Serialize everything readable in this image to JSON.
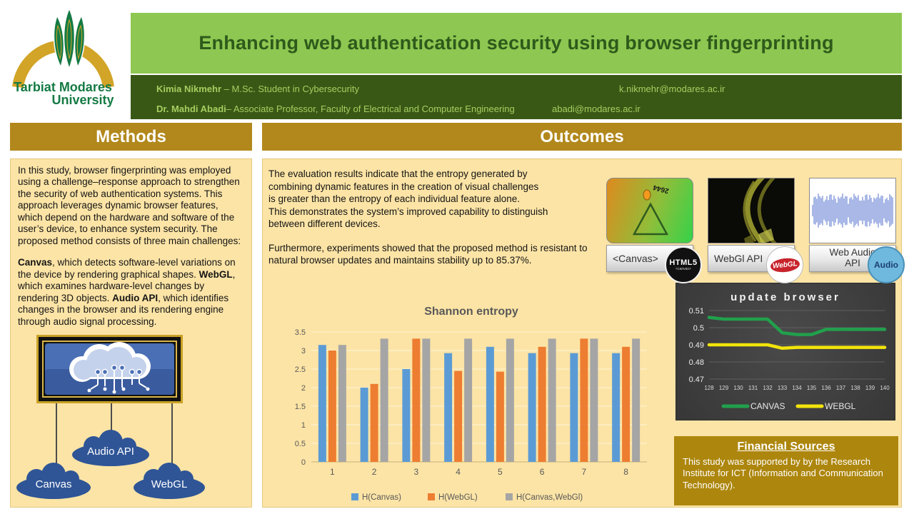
{
  "header": {
    "logo": {
      "line1": "Tarbiat Modares",
      "line2": "University"
    },
    "title": "Enhancing web authentication security using browser fingerprinting",
    "authors": [
      {
        "name": "Kimia Nikmehr ",
        "role": "– M.Sc. Student in Cybersecurity",
        "email": "k.nikmehr@modares.ac.ir"
      },
      {
        "name": "Dr. Mahdi Abadi",
        "role": "– Associate Professor, Faculty of Electrical and Computer Engineering",
        "email": "abadi@modares.ac.ir"
      }
    ]
  },
  "methods": {
    "title": "Methods",
    "p1": "In this study, browser fingerprinting was employed using a challenge–response approach to strengthen the security of web authentication systems. This approach leverages dynamic browser features, which depend on the hardware and software of the user’s device, to enhance system security. The proposed method consists of three main challenges:",
    "p2": {
      "b1": "Canvas",
      "t1": ", which detects software-level variations on the device by rendering graphical shapes. ",
      "b2": "WebGL",
      "t2": ", which examines hardware-level changes by rendering 3D objects. ",
      "b3": "Audio API",
      "t3": ", which identifies changes in the browser and its rendering engine through audio signal processing."
    },
    "diagram": {
      "nodes": [
        "Canvas",
        "Audio API",
        "WebGL"
      ]
    }
  },
  "outcomes": {
    "title": "Outcomes",
    "p1": "The evaluation results indicate that the entropy generated by\ncombining dynamic features in the creation of visual challenges\n is greater than the entropy of each individual feature alone.\n This demonstrates the  system’s improved capability to distinguish\nbetween different devices.",
    "p2": "Furthermore, experiments showed that the proposed method is resistant to natural browser updates and maintains stability up to 85.37%.",
    "cards": [
      {
        "label": "<Canvas>",
        "overlay_text": "2644",
        "badge_top": "HTML5",
        "badge_sub": "<canvas>"
      },
      {
        "label": "WebGl API",
        "badge_top": "WebGL"
      },
      {
        "label": "Web Audio\nAPI",
        "badge_top": "Audio"
      }
    ]
  },
  "financial": {
    "title": "Financial Sources",
    "text": "This study was supported by by the Research Institute for ICT (Information and Communication Technology)."
  },
  "colors": {
    "light_green": "#8EC751",
    "dark_green": "#3A5815",
    "gold_header": "#B2881C",
    "panel_yellow": "#FCE4A6",
    "financial_gold": "#AD860D",
    "cloud_blue": "#2F5597"
  },
  "chart_data": [
    {
      "type": "bar",
      "title": "Shannon entropy",
      "categories": [
        "1",
        "2",
        "3",
        "4",
        "5",
        "6",
        "7",
        "8"
      ],
      "series": [
        {
          "name": "H(Canvas)",
          "color": "#5B9BD5",
          "values": [
            3.15,
            2.0,
            2.5,
            2.93,
            3.1,
            2.93,
            2.93,
            2.93
          ]
        },
        {
          "name": "H(WebGL)",
          "color": "#ED7D31",
          "values": [
            3.0,
            2.1,
            3.32,
            2.45,
            2.43,
            3.1,
            3.32,
            3.1
          ]
        },
        {
          "name": "H(Canvas,WebGl)",
          "color": "#A5A5A5",
          "values": [
            3.15,
            3.32,
            3.32,
            3.32,
            3.32,
            3.32,
            3.32,
            3.32
          ]
        }
      ],
      "xlabel": "",
      "ylabel": "",
      "ylim": [
        0,
        3.5
      ],
      "yticks": [
        0,
        0.5,
        1,
        1.5,
        2,
        2.5,
        3,
        3.5
      ],
      "grid": true,
      "legend_position": "bottom"
    },
    {
      "type": "line",
      "title": "update browser",
      "x": [
        128,
        129,
        130,
        131,
        132,
        133,
        134,
        135,
        136,
        137,
        138,
        139,
        140
      ],
      "series": [
        {
          "name": "CANVAS",
          "color": "#21A04C",
          "values": [
            0.506,
            0.505,
            0.505,
            0.505,
            0.505,
            0.497,
            0.496,
            0.496,
            0.499,
            0.499,
            0.499,
            0.499,
            0.499
          ]
        },
        {
          "name": "WEBGL",
          "color": "#F2E40A",
          "values": [
            0.49,
            0.49,
            0.49,
            0.49,
            0.49,
            0.488,
            0.4885,
            0.4885,
            0.4885,
            0.4885,
            0.4885,
            0.4885,
            0.4885
          ]
        }
      ],
      "xlabel": "",
      "ylabel": "",
      "ylim": [
        0.47,
        0.51
      ],
      "yticks": [
        0.47,
        0.48,
        0.49,
        0.5,
        0.51
      ],
      "grid": true,
      "legend_position": "bottom",
      "background": "#3E3E3E"
    }
  ]
}
